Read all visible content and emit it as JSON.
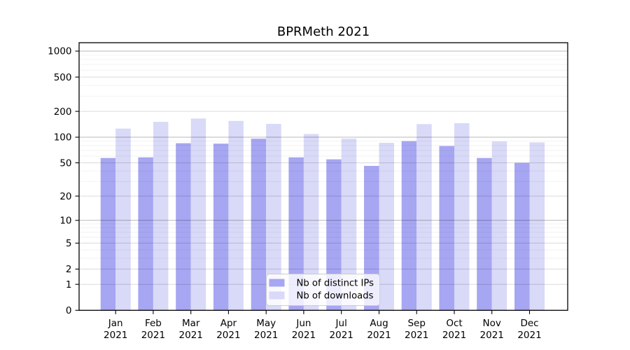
{
  "title": "BPRMeth 2021",
  "colors": {
    "distinct_ips_bar": "#a6a6f2",
    "downloads_bar": "#d9d9f8",
    "axis": "#000000",
    "text": "#000000",
    "background": "#ffffff",
    "grid_minor": "rgba(0,0,0,0.05)",
    "grid_major": "rgba(0,0,0,0.15)",
    "grid_emphasis": "rgba(0,0,0,0.28)",
    "legend_border": "#cccccc",
    "legend_bg": "rgba(255,255,255,0.8)"
  },
  "chart_data": {
    "type": "bar",
    "title": "BPRMeth 2021",
    "categories": [
      "Jan 2021",
      "Feb 2021",
      "Mar 2021",
      "Apr 2021",
      "May 2021",
      "Jun 2021",
      "Jul 2021",
      "Aug 2021",
      "Sep 2021",
      "Oct 2021",
      "Nov 2021",
      "Dec 2021"
    ],
    "x_tick_month": [
      "Jan",
      "Feb",
      "Mar",
      "Apr",
      "May",
      "Jun",
      "Jul",
      "Aug",
      "Sep",
      "Oct",
      "Nov",
      "Dec"
    ],
    "x_tick_year": "2021",
    "series": [
      {
        "name": "Nb of distinct IPs",
        "color": "#a6a6f2",
        "values": [
          57,
          58,
          85,
          84,
          96,
          58,
          55,
          46,
          90,
          79,
          57,
          50
        ]
      },
      {
        "name": "Nb of downloads",
        "color": "#d9d9f8",
        "values": [
          126,
          151,
          165,
          155,
          143,
          109,
          96,
          86,
          142,
          146,
          89,
          87
        ]
      }
    ],
    "y_axis": {
      "scale": "log1p",
      "ticks": [
        0,
        1,
        2,
        5,
        10,
        20,
        50,
        100,
        200,
        500,
        1000
      ],
      "minor_gridlines": [
        3,
        4,
        6,
        7,
        8,
        9,
        30,
        40,
        60,
        70,
        80,
        90,
        300,
        400,
        600,
        700,
        800,
        900
      ],
      "emphasis_gridlines": [
        10,
        100,
        1000
      ],
      "range": [
        0,
        1250
      ]
    },
    "legend": {
      "entries": [
        "Nb of distinct IPs",
        "Nb of downloads"
      ],
      "location": "lower center"
    },
    "grid": true
  }
}
